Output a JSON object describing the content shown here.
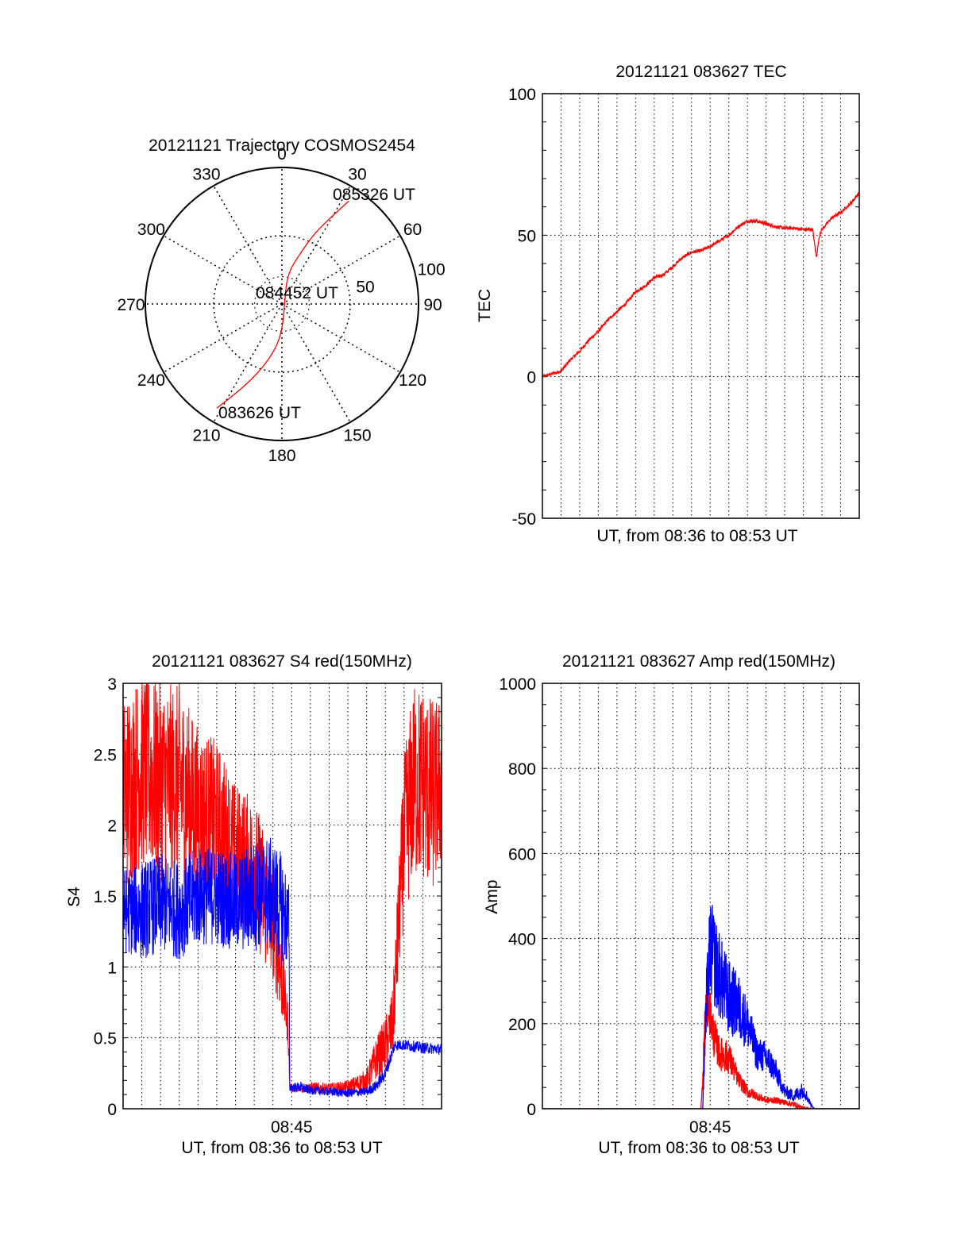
{
  "chart_data": [
    {
      "id": "trajectory",
      "type": "polar",
      "title": "20121121 Trajectory COSMOS2454",
      "azimuth_labels": [
        "0",
        "30",
        "60",
        "90",
        "120",
        "150",
        "180",
        "210",
        "240",
        "270",
        "300",
        "330"
      ],
      "azimuth_values": [
        0,
        30,
        60,
        90,
        120,
        150,
        180,
        210,
        240,
        270,
        300,
        330
      ],
      "radial_labels": [
        "50",
        "100"
      ],
      "radial_values": [
        50,
        100
      ],
      "radial_max": 100,
      "grid": true,
      "trajectory": {
        "points": [
          [
            212,
            90
          ],
          [
            208,
            76
          ],
          [
            202,
            60
          ],
          [
            195,
            45
          ],
          [
            186,
            30
          ],
          [
            178,
            16
          ],
          [
            135,
            2.5
          ],
          [
            10,
            22
          ],
          [
            20,
            40
          ],
          [
            25,
            58
          ],
          [
            30,
            75
          ],
          [
            33,
            90
          ]
        ],
        "annotations": [
          {
            "text": "083626 UT",
            "az": 212,
            "r": 90
          },
          {
            "text": "084452 UT",
            "az": 135,
            "r": 2.5
          },
          {
            "text": "085326 UT",
            "az": 33,
            "r": 90
          }
        ]
      },
      "colors": {
        "track": "#ff0000"
      }
    },
    {
      "id": "tec",
      "type": "line",
      "title": "20121121 083627 TEC",
      "ylabel": "TEC",
      "xlabel": "UT, from 08:36 to 08:53 UT",
      "xlim": [
        0,
        17
      ],
      "ylim": [
        -50,
        100
      ],
      "yticks": [
        -50,
        0,
        50,
        100
      ],
      "xticks": [],
      "grid": true,
      "series": [
        {
          "color": "#ff0000",
          "x": [
            0,
            0.5,
            1,
            1.5,
            2,
            2.5,
            3,
            3.5,
            4,
            4.5,
            5,
            5.5,
            6,
            6.5,
            7,
            7.5,
            8,
            8.5,
            9,
            9.5,
            10,
            10.5,
            11,
            11.5,
            12,
            12.5,
            13,
            13.5,
            14,
            14.5,
            14.7,
            14.8,
            14.9,
            15,
            15.5,
            16,
            16.5,
            17
          ],
          "y": [
            0,
            1,
            2,
            6,
            9,
            13,
            16,
            20,
            23,
            26,
            30,
            32,
            35,
            36,
            39,
            42,
            44,
            44.5,
            46,
            48,
            50,
            53,
            55,
            55,
            54,
            53,
            52.5,
            52.5,
            52,
            52,
            42,
            47,
            51,
            52,
            56,
            58,
            61,
            65
          ]
        }
      ]
    },
    {
      "id": "s4",
      "type": "line",
      "title": "20121121 083627 S4 red(150MHz)",
      "ylabel": "S4",
      "xlabel": "UT, from 08:36 to 08:53 UT",
      "xlim": [
        0,
        17
      ],
      "ylim": [
        0,
        3
      ],
      "yticks": [
        0,
        0.5,
        1,
        1.5,
        2,
        2.5,
        3
      ],
      "ytick_labels": [
        "0",
        "0.5",
        "1",
        "1.5",
        "2",
        "2.5",
        "3"
      ],
      "xtick_value": 9,
      "xtick_label": "08:45",
      "grid": true,
      "series": [
        {
          "color": "#ff0000",
          "x": [
            0,
            1,
            2,
            3,
            4,
            5,
            6,
            7,
            7.5,
            8,
            8.5,
            8.8,
            8.9,
            9.5,
            10,
            11,
            12,
            13,
            13.5,
            14,
            14.4,
            14.7,
            15,
            15.5,
            16,
            16.5,
            17
          ],
          "y": [
            2.2,
            2.4,
            2.3,
            2.3,
            2.1,
            2.0,
            1.8,
            1.7,
            1.5,
            1.3,
            0.9,
            0.6,
            0.15,
            0.14,
            0.15,
            0.14,
            0.15,
            0.2,
            0.35,
            0.45,
            0.6,
            1.3,
            1.9,
            2.3,
            2.3,
            2.2,
            2.3
          ],
          "amplitude": [
            0.7,
            0.7,
            0.7,
            0.7,
            0.6,
            0.6,
            0.5,
            0.5,
            0.5,
            0.4,
            0.3,
            0.15,
            0.03,
            0.03,
            0.04,
            0.04,
            0.05,
            0.08,
            0.15,
            0.2,
            0.25,
            0.4,
            0.6,
            0.7,
            0.7,
            0.7,
            0.6
          ]
        },
        {
          "color": "#0000ff",
          "x": [
            0,
            1,
            2,
            3,
            4,
            5,
            6,
            7,
            7.5,
            8,
            8.5,
            8.85,
            8.9,
            9.5,
            10,
            11,
            12,
            13,
            13.5,
            14,
            14.5,
            15,
            16,
            17
          ],
          "y": [
            1.4,
            1.4,
            1.45,
            1.4,
            1.5,
            1.5,
            1.45,
            1.5,
            1.55,
            1.5,
            1.4,
            1.3,
            0.15,
            0.15,
            0.13,
            0.12,
            0.11,
            0.12,
            0.16,
            0.25,
            0.45,
            0.45,
            0.43,
            0.42
          ],
          "amplitude": [
            0.3,
            0.35,
            0.35,
            0.35,
            0.35,
            0.35,
            0.35,
            0.4,
            0.4,
            0.4,
            0.4,
            0.3,
            0.03,
            0.04,
            0.03,
            0.03,
            0.03,
            0.03,
            0.04,
            0.05,
            0.04,
            0.04,
            0.04,
            0.04
          ]
        }
      ]
    },
    {
      "id": "amp",
      "type": "line",
      "title": "20121121 083627 Amp red(150MHz)",
      "ylabel": "Amp",
      "xlabel": "UT, from 08:36 to 08:53 UT",
      "xlim": [
        0,
        17
      ],
      "ylim": [
        0,
        1000
      ],
      "yticks": [
        0,
        200,
        400,
        600,
        800,
        1000
      ],
      "ytick_labels": [
        "0",
        "200",
        "400",
        "600",
        "800",
        "1000"
      ],
      "xtick_value": 9,
      "xtick_label": "08:45",
      "grid": true,
      "series": [
        {
          "color": "#ff0000",
          "x": [
            0,
            8.5,
            8.6,
            8.7,
            8.9,
            9.2,
            9.5,
            10,
            10.5,
            11,
            11.5,
            12,
            12.5,
            13,
            13.5,
            14,
            14.5,
            17
          ],
          "y": [
            0,
            0,
            60,
            200,
            250,
            170,
            130,
            120,
            70,
            40,
            30,
            20,
            20,
            15,
            10,
            2,
            0,
            0
          ],
          "amplitude": [
            0,
            0,
            20,
            60,
            60,
            50,
            40,
            40,
            20,
            15,
            10,
            8,
            8,
            6,
            8,
            2,
            0,
            0
          ]
        },
        {
          "color": "#0000ff",
          "x": [
            0,
            8.6,
            8.8,
            9.0,
            9.3,
            9.6,
            10,
            10.5,
            11,
            11.5,
            12,
            12.5,
            13,
            13.5,
            14,
            14.4,
            14.6,
            17
          ],
          "y": [
            0,
            0,
            250,
            380,
            340,
            300,
            260,
            240,
            200,
            130,
            120,
            90,
            40,
            30,
            45,
            10,
            0,
            0
          ],
          "amplitude": [
            0,
            0,
            80,
            120,
            110,
            100,
            90,
            80,
            60,
            40,
            40,
            30,
            15,
            15,
            20,
            5,
            0,
            0
          ]
        }
      ]
    }
  ]
}
